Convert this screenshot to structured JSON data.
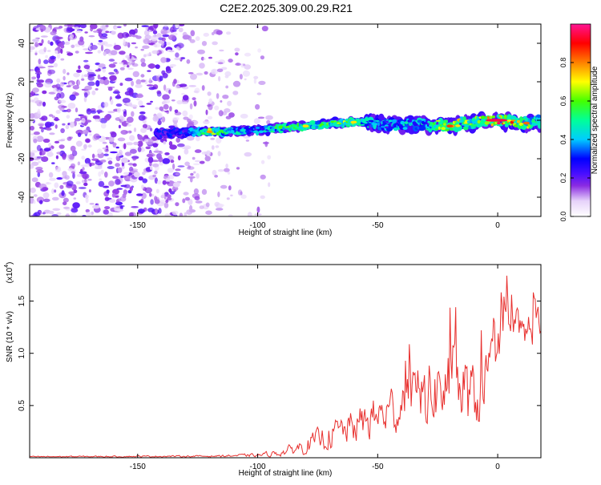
{
  "title": "C2E2.2025.309.00.29.R21",
  "chart_data": [
    {
      "type": "heatmap",
      "name": "spectrogram",
      "xlabel": "Height of straight line (km)",
      "ylabel": "Frequency (Hz)",
      "xlim": [
        -195,
        18
      ],
      "ylim": [
        -50,
        50
      ],
      "xticks": [
        -150,
        -100,
        -50,
        0
      ],
      "yticks": [
        40,
        20,
        0,
        -20,
        -40
      ],
      "xtick_labels": [
        "-150",
        "-100",
        "-50",
        "0"
      ],
      "ytick_labels": [
        "40",
        "20",
        "0",
        "-20",
        "-40"
      ],
      "colorbar": {
        "label": "Normalized spectral amplitude",
        "range": [
          0.0,
          1.0
        ],
        "ticks": [
          0.0,
          0.2,
          0.4,
          0.6,
          0.8
        ],
        "tick_labels": [
          "0.0",
          "0.2",
          "0.4",
          "0.6",
          "0.8"
        ],
        "colors": [
          "#ffffff",
          "#8a2be2",
          "#4b0fff",
          "#0000ff",
          "#00ccff",
          "#00ff80",
          "#66ff00",
          "#ffff00",
          "#ff8000",
          "#ff0000",
          "#ff1493"
        ]
      },
      "noise_region": {
        "x": [
          -195,
          -100
        ],
        "y": [
          -50,
          50
        ],
        "level": 0.15
      },
      "signal_track": [
        {
          "x": -142,
          "f": -7.0,
          "a": 0.28
        },
        {
          "x": -130,
          "f": -6.5,
          "a": 0.3
        },
        {
          "x": -120,
          "f": -6.0,
          "a": 0.62
        },
        {
          "x": -110,
          "f": -6.0,
          "a": 0.45
        },
        {
          "x": -100,
          "f": -5.0,
          "a": 0.4
        },
        {
          "x": -90,
          "f": -4.0,
          "a": 0.55
        },
        {
          "x": -80,
          "f": -3.0,
          "a": 0.62
        },
        {
          "x": -70,
          "f": -2.0,
          "a": 0.6
        },
        {
          "x": -60,
          "f": -1.0,
          "a": 0.65
        },
        {
          "x": -50,
          "f": -1.5,
          "a": 0.4
        },
        {
          "x": -40,
          "f": -2.5,
          "a": 0.42
        },
        {
          "x": -30,
          "f": -2.0,
          "a": 0.45
        },
        {
          "x": -20,
          "f": -3.0,
          "a": 0.78
        },
        {
          "x": -10,
          "f": -1.0,
          "a": 0.55
        },
        {
          "x": 0,
          "f": 0.0,
          "a": 0.95
        },
        {
          "x": 10,
          "f": -1.5,
          "a": 0.7
        },
        {
          "x": 17,
          "f": -1.0,
          "a": 0.5
        }
      ]
    },
    {
      "type": "line",
      "name": "snr",
      "xlabel": "Height of straight line (km)",
      "ylabel": "SNR (10 * v/v)",
      "exponent_label": "(x10",
      "exponent_power": "4",
      "exponent_close": ")",
      "xlim": [
        -195,
        18
      ],
      "ylim": [
        0,
        18500
      ],
      "xticks": [
        -150,
        -100,
        -50,
        0
      ],
      "yticks": [
        5000,
        10000,
        15000
      ],
      "xtick_labels": [
        "-150",
        "-100",
        "-50",
        "0"
      ],
      "ytick_labels": [
        "0.5",
        "1.0",
        "1.5"
      ],
      "color": "#e8312f",
      "envelope": {
        "x": [
          -195,
          -120,
          -100,
          -90,
          -80,
          -70,
          -60,
          -50,
          -40,
          -30,
          -20,
          -15,
          -10,
          -5,
          0,
          5,
          10,
          15,
          18
        ],
        "center": [
          100,
          150,
          250,
          500,
          1200,
          2200,
          3000,
          4000,
          5000,
          6000,
          7000,
          6500,
          5000,
          8000,
          10000,
          12000,
          11500,
          13000,
          13000
        ],
        "spread": [
          80,
          120,
          250,
          500,
          1200,
          2000,
          2500,
          3200,
          4000,
          5000,
          6000,
          6500,
          5000,
          4500,
          3500,
          3500,
          3000,
          3000,
          2000
        ]
      },
      "n_points": 540
    }
  ]
}
